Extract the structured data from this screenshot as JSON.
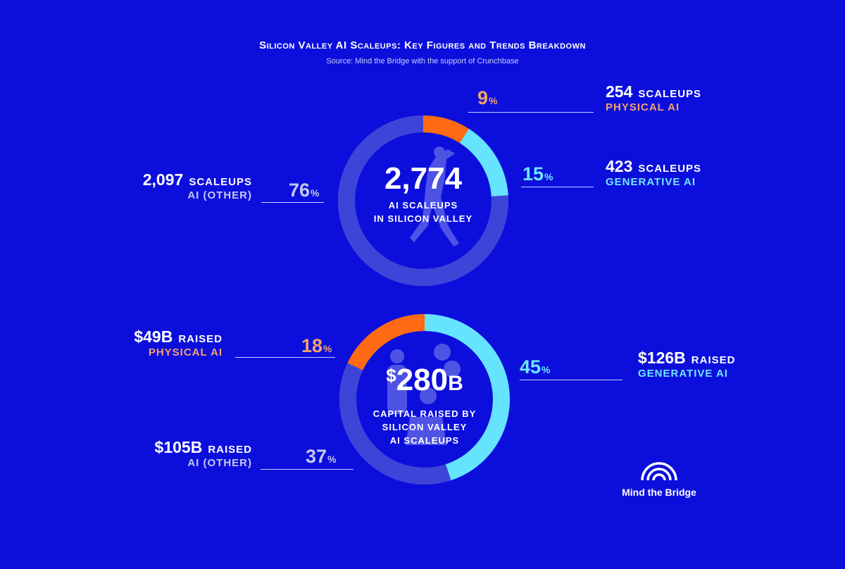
{
  "title": "Silicon Valley AI Scaleups: Key Figures and Trends Breakdown",
  "subtitle": "Source: Mind the Bridge with the support of Crunchbase",
  "colors": {
    "background": "#0c0fdc",
    "ring_track": "#3f44d8",
    "ai_other": "#3f44d8",
    "physical_ai": "#ff6a13",
    "generative_ai": "#66e3ff",
    "label_orange": "#f6a16b",
    "label_cyan": "#6ee6ff"
  },
  "donut1": {
    "center_value": "2,774",
    "center_line1": "AI SCALEUPS",
    "center_line2": "IN SILICON VALLEY",
    "segments": [
      {
        "count": "254",
        "unit": "SCALEUPS",
        "category": "PHYSICAL AI",
        "pct": "9",
        "pct_symbol": "%"
      },
      {
        "count": "423",
        "unit": "SCALEUPS",
        "category": "GENERATIVE AI",
        "pct": "15",
        "pct_symbol": "%"
      },
      {
        "count": "2,097",
        "unit": "SCALEUPS",
        "category": "AI (OTHER)",
        "pct": "76",
        "pct_symbol": "%"
      }
    ]
  },
  "donut2": {
    "center_dollar": "$",
    "center_value": "280",
    "center_suffix": "B",
    "center_line1": "CAPITAL RAISED BY",
    "center_line2": "SILICON VALLEY",
    "center_line3": "AI SCALEUPS",
    "segments": [
      {
        "amount": "$126B",
        "unit": "RAISED",
        "category": "GENERATIVE AI",
        "pct": "45",
        "pct_symbol": "%"
      },
      {
        "amount": "$105B",
        "unit": "RAISED",
        "category": "AI (OTHER)",
        "pct": "37",
        "pct_symbol": "%"
      },
      {
        "amount": "$49B",
        "unit": "RAISED",
        "category": "PHYSICAL AI",
        "pct": "18",
        "pct_symbol": "%"
      }
    ]
  },
  "logo": {
    "text": "Mind the Bridge",
    "icon": "bridge-arcs-icon"
  },
  "chart_data": [
    {
      "type": "pie",
      "title": "2,774 AI SCALEUPS IN SILICON VALLEY",
      "categories": [
        "PHYSICAL AI",
        "GENERATIVE AI",
        "AI (OTHER)"
      ],
      "values": [
        9,
        15,
        76
      ],
      "counts": [
        254,
        423,
        2097
      ],
      "total": 2774,
      "donut": true
    },
    {
      "type": "pie",
      "title": "$280B CAPITAL RAISED BY SILICON VALLEY AI SCALEUPS",
      "categories": [
        "GENERATIVE AI",
        "AI (OTHER)",
        "PHYSICAL AI"
      ],
      "values": [
        45,
        37,
        18
      ],
      "amounts_billion_usd": [
        126,
        105,
        49
      ],
      "total_billion_usd": 280,
      "donut": true
    }
  ]
}
